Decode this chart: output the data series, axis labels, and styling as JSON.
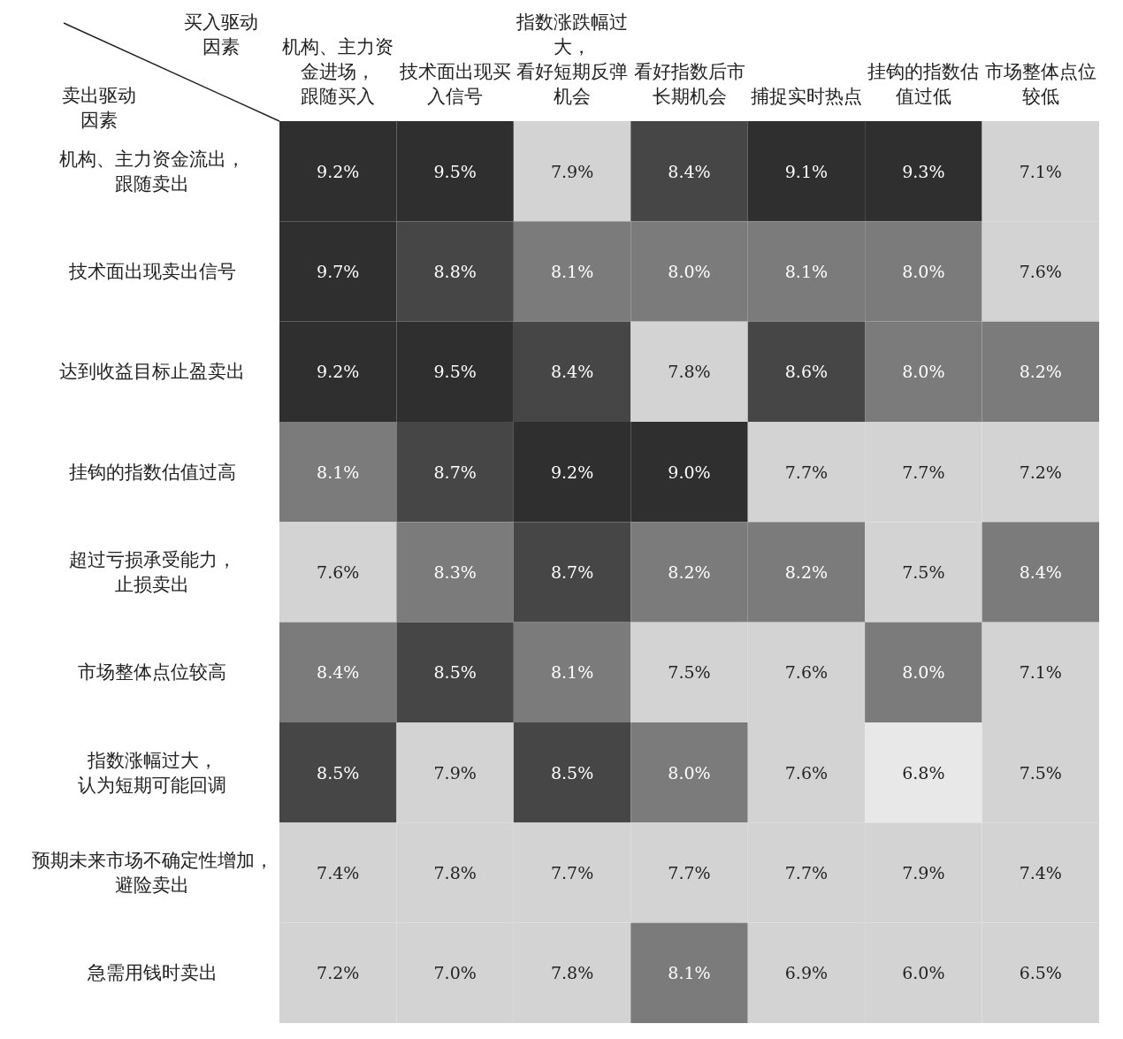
{
  "chart_data": {
    "type": "heatmap",
    "xlabel": "买入驱动因素",
    "ylabel": "卖出驱动因素",
    "categories": [
      "机构、主力资金进场，跟随买入",
      "技术面出现买入信号",
      "指数涨跌幅过大，看好短期反弹机会",
      "看好指数后市长期机会",
      "捕捉实时热点",
      "挂钩的指数估值过低",
      "市场整体点位较低"
    ],
    "y_categories": [
      "机构、主力资金流出，跟随卖出",
      "技术面出现卖出信号",
      "达到收益目标止盈卖出",
      "挂钩的指数估值过高",
      "超过亏损承受能力，止损卖出",
      "市场整体点位较高",
      "指数涨幅过大，认为短期可能回调",
      "预期未来市场不确定性增加，避险卖出",
      "急需用钱时卖出"
    ],
    "cells": [
      [
        9.2,
        9.5,
        7.9,
        8.4,
        9.1,
        9.3,
        7.1
      ],
      [
        9.7,
        8.8,
        8.1,
        8.0,
        8.1,
        8.0,
        7.6
      ],
      [
        9.2,
        9.5,
        8.4,
        7.8,
        8.6,
        8.0,
        8.2
      ],
      [
        8.1,
        8.7,
        9.2,
        9.0,
        7.7,
        7.7,
        7.2
      ],
      [
        7.6,
        8.3,
        8.7,
        8.2,
        8.2,
        7.5,
        8.4
      ],
      [
        8.4,
        8.5,
        8.1,
        7.5,
        7.6,
        8.0,
        7.1
      ],
      [
        8.5,
        7.9,
        8.5,
        8.0,
        7.6,
        6.8,
        7.5
      ],
      [
        7.4,
        7.8,
        7.7,
        7.7,
        7.7,
        7.9,
        7.4
      ],
      [
        7.2,
        7.0,
        7.8,
        8.1,
        6.9,
        6.0,
        6.5
      ]
    ],
    "cell_labels": [
      [
        "9.2%",
        "9.5%",
        "7.9%",
        "8.4%",
        "9.1%",
        "9.3%",
        "7.1%"
      ],
      [
        "9.7%",
        "8.8%",
        "8.1%",
        "8.0%",
        "8.1%",
        "8.0%",
        "7.6%"
      ],
      [
        "9.2%",
        "9.5%",
        "8.4%",
        "7.8%",
        "8.6%",
        "8.0%",
        "8.2%"
      ],
      [
        "8.1%",
        "8.7%",
        "9.2%",
        "9.0%",
        "7.7%",
        "7.7%",
        "7.2%"
      ],
      [
        "7.6%",
        "8.3%",
        "8.7%",
        "8.2%",
        "8.2%",
        "7.5%",
        "8.4%"
      ],
      [
        "8.4%",
        "8.5%",
        "8.1%",
        "7.5%",
        "7.6%",
        "8.0%",
        "7.1%"
      ],
      [
        "8.5%",
        "7.9%",
        "8.5%",
        "8.0%",
        "7.6%",
        "6.8%",
        "7.5%"
      ],
      [
        "7.4%",
        "7.8%",
        "7.7%",
        "7.7%",
        "7.7%",
        "7.9%",
        "7.4%"
      ],
      [
        "7.2%",
        "7.0%",
        "7.8%",
        "8.1%",
        "6.9%",
        "6.0%",
        "6.5%"
      ]
    ],
    "colors": [
      [
        null,
        null,
        null,
        null,
        null,
        null,
        null
      ],
      [
        null,
        null,
        null,
        null,
        null,
        null,
        null
      ],
      [
        null,
        null,
        null,
        null,
        null,
        null,
        null
      ],
      [
        null,
        null,
        null,
        null,
        null,
        null,
        null
      ],
      [
        null,
        null,
        null,
        null,
        null,
        null,
        "#7b7b7b"
      ],
      [
        "#7b7b7b",
        null,
        null,
        null,
        null,
        null,
        null
      ],
      [
        null,
        null,
        null,
        null,
        null,
        null,
        null
      ],
      [
        null,
        null,
        null,
        null,
        null,
        null,
        null
      ],
      [
        null,
        null,
        null,
        null,
        null,
        "#d3d3d3",
        "#d3d3d3"
      ]
    ]
  }
}
